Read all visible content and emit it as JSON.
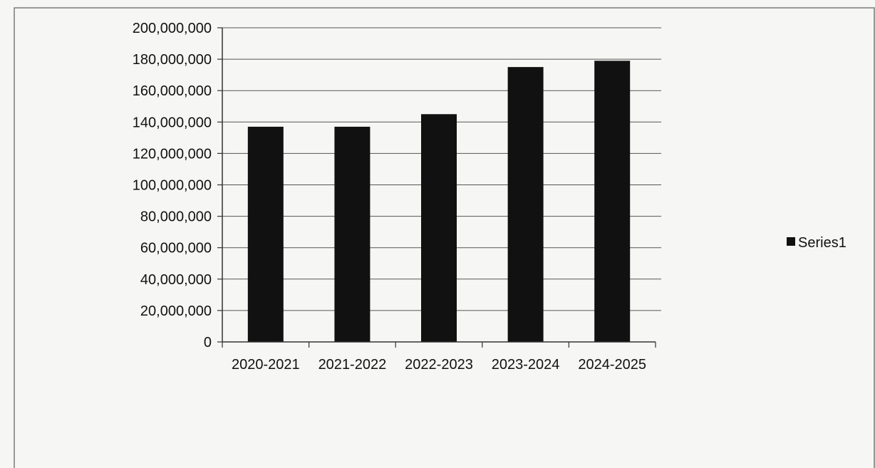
{
  "chart_data": {
    "type": "bar",
    "categories": [
      "2020-2021",
      "2021-2022",
      "2022-2023",
      "2023-2024",
      "2024-2025"
    ],
    "series": [
      {
        "name": "Series1",
        "values": [
          137000000,
          137000000,
          145000000,
          175000000,
          179000000
        ],
        "color": "#111111"
      }
    ],
    "y_ticks": [
      "0",
      "20,000,000",
      "40,000,000",
      "60,000,000",
      "80,000,000",
      "100,000,000",
      "120,000,000",
      "140,000,000",
      "160,000,000",
      "180,000,000",
      "200,000,000"
    ],
    "ylim": [
      0,
      200000000
    ],
    "grid": true,
    "legend_position": "right"
  }
}
